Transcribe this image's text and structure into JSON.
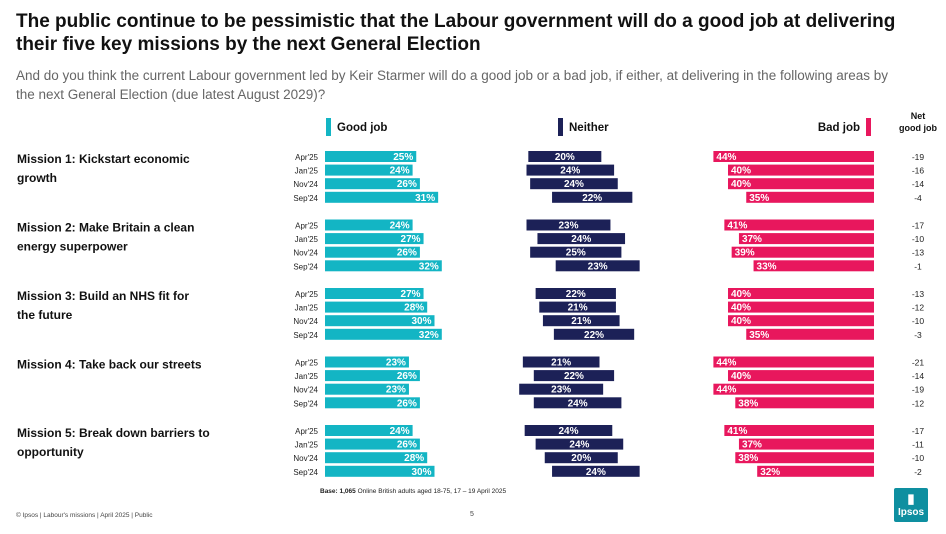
{
  "title": "The public continue to be pessimistic that the Labour government will do a good job at delivering their five key missions by the next General Election",
  "subtitle": "And do you think the current Labour government led by Keir Starmer will do a good job or a bad job, if either, at delivering in the following areas by the next General Election (due latest August 2029)?",
  "footer": "© Ipsos | Labour's missions | April 2025 | Public",
  "page_number": "5",
  "logo_text": "Ipsos",
  "colors": {
    "good": "#13b5c4",
    "neither": "#1c2157",
    "bad": "#e8175d",
    "text": "#111111"
  },
  "chart_data": {
    "type": "bar",
    "stacking": "diverging",
    "legend": {
      "good": "Good job",
      "neither": "Neither",
      "bad": "Bad job",
      "net_header": "Net good job"
    },
    "base_label": "Base:",
    "base_value": "1,065",
    "base_text": "Online British adults aged 18-75, 17 – 19 April 2025",
    "periods": [
      "Apr'25",
      "Jan'25",
      "Nov'24",
      "Sep'24"
    ],
    "missions": [
      {
        "label": "Mission 1: Kickstart economic growth",
        "good": [
          25,
          24,
          26,
          31
        ],
        "neither": [
          20,
          24,
          24,
          22
        ],
        "bad": [
          44,
          40,
          40,
          35
        ],
        "net": [
          "-19",
          "-16",
          "-14",
          "-4"
        ]
      },
      {
        "label": "Mission 2: Make Britain a clean energy superpower",
        "good": [
          24,
          27,
          26,
          32
        ],
        "neither": [
          23,
          24,
          25,
          23
        ],
        "bad": [
          41,
          37,
          39,
          33
        ],
        "net": [
          "-17",
          "-10",
          "-13",
          "-1"
        ]
      },
      {
        "label": "Mission 3: Build an NHS fit for the future",
        "good": [
          27,
          28,
          30,
          32
        ],
        "neither": [
          22,
          21,
          21,
          22
        ],
        "bad": [
          40,
          40,
          40,
          35
        ],
        "net": [
          "-13",
          "-12",
          "-10",
          "-3"
        ]
      },
      {
        "label": "Mission 4: Take back our streets",
        "good": [
          23,
          26,
          23,
          26
        ],
        "neither": [
          21,
          22,
          23,
          24
        ],
        "bad": [
          44,
          40,
          44,
          38
        ],
        "net": [
          "-21",
          "-14",
          "-19",
          "-12"
        ]
      },
      {
        "label": "Mission 5: Break down barriers to opportunity",
        "good": [
          24,
          26,
          28,
          30
        ],
        "neither": [
          24,
          24,
          20,
          24
        ],
        "bad": [
          41,
          37,
          38,
          32
        ],
        "net": [
          "-17",
          "-11",
          "-10",
          "-2"
        ]
      }
    ]
  }
}
